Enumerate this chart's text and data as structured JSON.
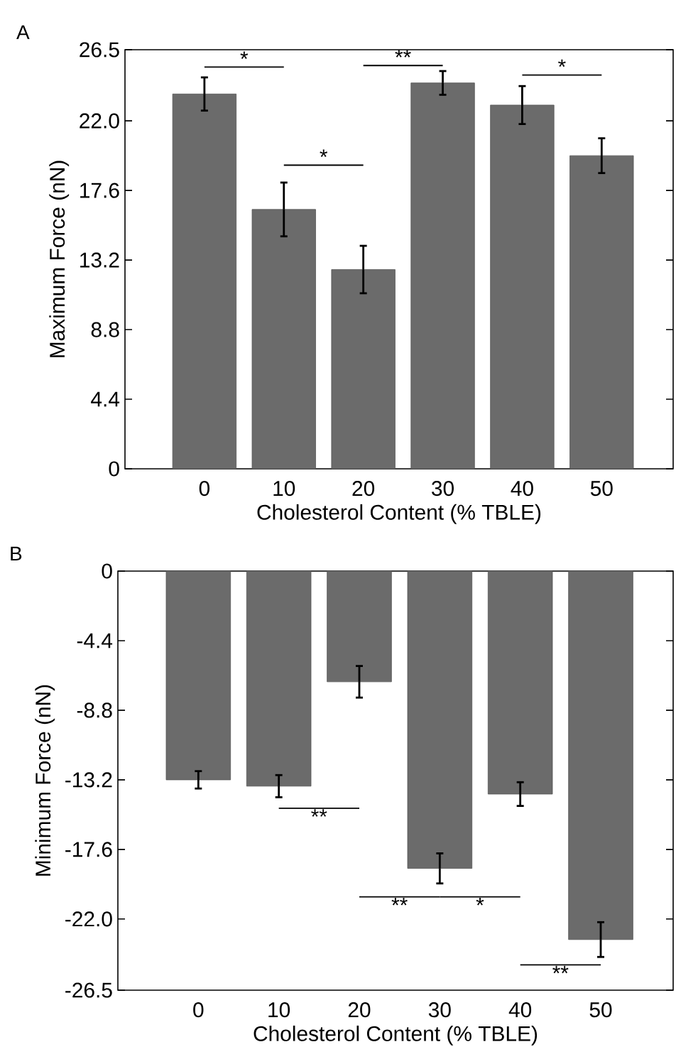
{
  "chart_data": [
    {
      "type": "bar",
      "title": "A",
      "xlabel": "Cholesterol Content (% TBLE)",
      "ylabel": "Maximum Force (nN)",
      "categories": [
        "0",
        "10",
        "20",
        "30",
        "40",
        "50"
      ],
      "values": [
        23.7,
        16.4,
        12.6,
        24.4,
        23.0,
        19.8
      ],
      "errors": [
        1.05,
        1.7,
        1.5,
        0.75,
        1.2,
        1.1
      ],
      "color": "#6b6b6b",
      "ylim": [
        0,
        26.5
      ],
      "yticks": [
        0,
        4.4,
        8.8,
        13.2,
        17.6,
        {
          "value": 22,
          "label": "22.0"
        },
        26.5
      ],
      "annotations": [
        "*",
        "*",
        "**",
        "*"
      ]
    },
    {
      "type": "bar",
      "title": "B",
      "xlabel": "Cholesterol Content (% TBLE)",
      "ylabel": "Minimum Force (nN)",
      "categories": [
        "0",
        "10",
        "20",
        "30",
        "40",
        "50"
      ],
      "values": [
        -13.2,
        -13.6,
        -7.0,
        -18.8,
        -14.1,
        -23.3
      ],
      "errors": [
        0.55,
        0.7,
        1.0,
        0.95,
        0.75,
        1.1
      ],
      "color": "#6b6b6b",
      "ylim": [
        -26.5,
        0
      ],
      "yticks": [
        -26.5,
        {
          "value": -22,
          "label": "-22.0"
        },
        -17.6,
        -13.2,
        -8.8,
        -4.4,
        0
      ],
      "annotations": [
        "**",
        "**",
        "*",
        "**"
      ]
    }
  ]
}
